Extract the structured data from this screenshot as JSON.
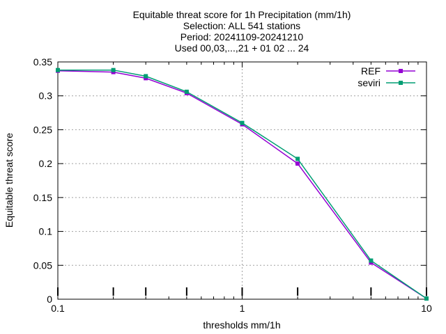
{
  "chart_data": {
    "type": "line",
    "title_lines": [
      "Equitable threat score  for 1h Precipitation (mm/1h)",
      "Selection: ALL    541 stations",
      "Period: 20241109-20241210",
      "Used 00,03,...,21 + 01 02 ... 24"
    ],
    "xlabel": "thresholds mm/1h",
    "ylabel": "Equitable threat score",
    "x_scale": "log",
    "xlim": [
      0.1,
      10
    ],
    "ylim": [
      0,
      0.35
    ],
    "x_ticks": [
      0.1,
      1,
      10
    ],
    "x_tick_labels": [
      "0.1",
      "1",
      "10"
    ],
    "y_ticks": [
      0,
      0.05,
      0.1,
      0.15,
      0.2,
      0.25,
      0.3,
      0.35
    ],
    "y_tick_labels": [
      "0",
      "0.05",
      "0.1",
      "0.15",
      "0.2",
      "0.25",
      "0.3",
      "0.35"
    ],
    "grid": true,
    "legend_position": "top-right",
    "x": [
      0.1,
      0.2,
      0.3,
      0.5,
      1,
      2,
      5,
      10
    ],
    "series": [
      {
        "name": "REF",
        "color": "#9400d3",
        "values": [
          0.337,
          0.335,
          0.326,
          0.304,
          0.258,
          0.2,
          0.054,
          0.001
        ]
      },
      {
        "name": "seviri",
        "color": "#009e73",
        "values": [
          0.338,
          0.338,
          0.329,
          0.306,
          0.26,
          0.207,
          0.057,
          0.001
        ]
      }
    ],
    "bottom_markers_x": [
      0.1,
      0.2,
      0.3,
      0.5,
      1,
      2,
      5,
      10
    ]
  }
}
